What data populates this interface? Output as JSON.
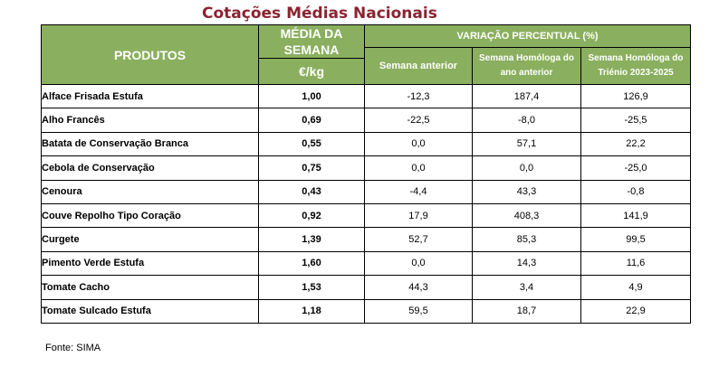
{
  "title": "Cotações Médias Nacionais",
  "headers": {
    "produtos": "PRODUTOS",
    "media": "MÉDIA DA SEMANA",
    "unit": "€/kg",
    "variacao": "VARIAÇÃO PERCENTUAL (%)",
    "semana_anterior": "Semana anterior",
    "homologa_ano": "Semana Homóloga do ano anterior",
    "homologa_trienio": "Semana Homóloga do Triénio 2023-2025"
  },
  "rows": [
    {
      "produto": "Alface Frisada Estufa",
      "media": "1,00",
      "anterior": "-12,3",
      "ano": "187,4",
      "trienio": "126,9"
    },
    {
      "produto": "Alho Francês",
      "media": "0,69",
      "anterior": "-22,5",
      "ano": "-8,0",
      "trienio": "-25,5"
    },
    {
      "produto": "Batata de Conservação Branca",
      "media": "0,55",
      "anterior": "0,0",
      "ano": "57,1",
      "trienio": "22,2"
    },
    {
      "produto": "Cebola de Conservação",
      "media": "0,75",
      "anterior": "0,0",
      "ano": "0,0",
      "trienio": "-25,0"
    },
    {
      "produto": "Cenoura",
      "media": "0,43",
      "anterior": "-4,4",
      "ano": "43,3",
      "trienio": "-0,8"
    },
    {
      "produto": "Couve Repolho Tipo Coração",
      "media": "0,92",
      "anterior": "17,9",
      "ano": "408,3",
      "trienio": "141,9"
    },
    {
      "produto": "Curgete",
      "media": "1,39",
      "anterior": "52,7",
      "ano": "85,3",
      "trienio": "99,5"
    },
    {
      "produto": "Pimento Verde Estufa",
      "media": "1,60",
      "anterior": "0,0",
      "ano": "14,3",
      "trienio": "11,6"
    },
    {
      "produto": "Tomate Cacho",
      "media": "1,53",
      "anterior": "44,3",
      "ano": "3,4",
      "trienio": "4,9"
    },
    {
      "produto": "Tomate Sulcado Estufa",
      "media": "1,18",
      "anterior": "59,5",
      "ano": "18,7",
      "trienio": "22,9"
    }
  ],
  "source": "Fonte: SIMA"
}
